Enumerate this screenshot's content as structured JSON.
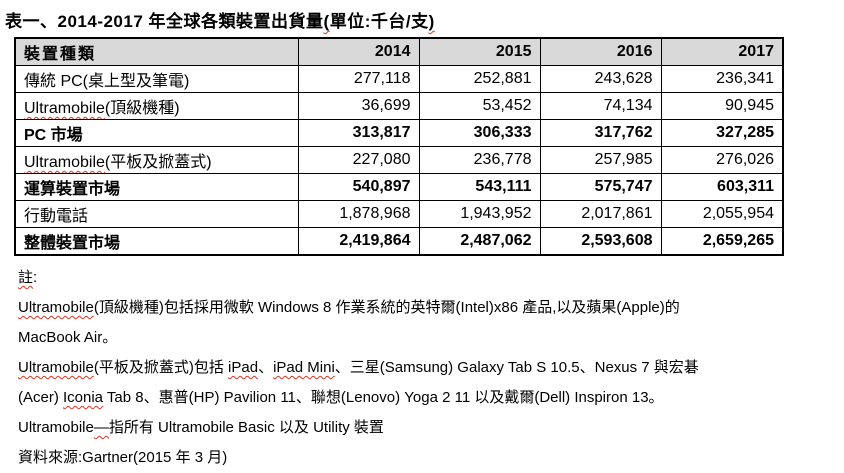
{
  "title": {
    "segments": [
      {
        "text": "表一、2014-2017 年全球各類裝置出貨量",
        "squiggle": false
      },
      {
        "text": "(",
        "squiggle": true
      },
      {
        "text": "單位:千台/支",
        "squiggle": false
      },
      {
        "text": ")",
        "squiggle": true
      }
    ]
  },
  "table": {
    "header": {
      "label": "裝置種類",
      "years": [
        "2014",
        "2015",
        "2016",
        "2017"
      ]
    },
    "rows": [
      {
        "segments": [
          {
            "text": "傳統 PC(桌上型及筆電)",
            "squiggle": false
          }
        ],
        "values": [
          "277,118",
          "252,881",
          "243,628",
          "236,341"
        ],
        "bold": false
      },
      {
        "segments": [
          {
            "text": "Ultramobile",
            "squiggle": true
          },
          {
            "text": "(頂級機種)",
            "squiggle": false
          }
        ],
        "values": [
          "36,699",
          "53,452",
          "74,134",
          "90,945"
        ],
        "bold": false
      },
      {
        "segments": [
          {
            "text": "PC 市場",
            "squiggle": false
          }
        ],
        "values": [
          "313,817",
          "306,333",
          "317,762",
          "327,285"
        ],
        "bold": true
      },
      {
        "segments": [
          {
            "text": "Ultramobile",
            "squiggle": true
          },
          {
            "text": "(平板及掀蓋式)",
            "squiggle": false
          }
        ],
        "values": [
          "227,080",
          "236,778",
          "257,985",
          "276,026"
        ],
        "bold": false
      },
      {
        "segments": [
          {
            "text": "運算裝置市場",
            "squiggle": false
          }
        ],
        "values": [
          "540,897",
          "543,111",
          "575,747",
          "603,311"
        ],
        "bold": true
      },
      {
        "segments": [
          {
            "text": "行動電話",
            "squiggle": false
          }
        ],
        "values": [
          "1,878,968",
          "1,943,952",
          "2,017,861",
          "2,055,954"
        ],
        "bold": false
      },
      {
        "segments": [
          {
            "text": "整體裝置市場",
            "squiggle": false
          }
        ],
        "values": [
          "2,419,864",
          "2,487,062",
          "2,593,608",
          "2,659,265"
        ],
        "bold": true
      }
    ]
  },
  "notes": {
    "lines": [
      [
        {
          "text": "註",
          "squiggle": true
        },
        {
          "text": ":",
          "squiggle": false
        }
      ],
      [
        {
          "text": "Ultramobile",
          "squiggle": true
        },
        {
          "text": "(頂級機種)包括採用微軟 Windows 8 作業系統的英特爾(Intel)x86 產品,以及蘋果(Apple)的",
          "squiggle": false
        }
      ],
      [
        {
          "text": "MacBook Air。",
          "squiggle": false
        }
      ],
      [
        {
          "text": "Ultramobile",
          "squiggle": true
        },
        {
          "text": "(平板及掀蓋式)包括 ",
          "squiggle": false
        },
        {
          "text": "iPad",
          "squiggle": true
        },
        {
          "text": "、",
          "squiggle": false
        },
        {
          "text": "iPad Mini",
          "squiggle": true
        },
        {
          "text": "、三星(Samsung) Galaxy Tab S 10.5、Nexus 7 與宏碁",
          "squiggle": false
        }
      ],
      [
        {
          "text": "(Acer) ",
          "squiggle": false
        },
        {
          "text": "Iconia",
          "squiggle": true
        },
        {
          "text": " Tab 8、惠普(HP) Pavilion 11、聯想(Lenovo) Yoga 2 11 以及戴爾(Dell) Inspiron 13。",
          "squiggle": false
        }
      ],
      [
        {
          "text": "Ultramobile",
          "squiggle": false
        },
        {
          "text": "—",
          "squiggle": true
        },
        {
          "text": "指所有 Ultramobile Basic 以及 Utility 裝置",
          "squiggle": false
        }
      ],
      [
        {
          "text": "資料來源:Gartner(2015 年 3 月)",
          "squiggle": false
        }
      ]
    ]
  },
  "colors": {
    "header_bg": "#d9d9d9",
    "border": "#000000",
    "squiggle_red": "#e03424",
    "text": "#000000",
    "page_bg": "#ffffff"
  }
}
